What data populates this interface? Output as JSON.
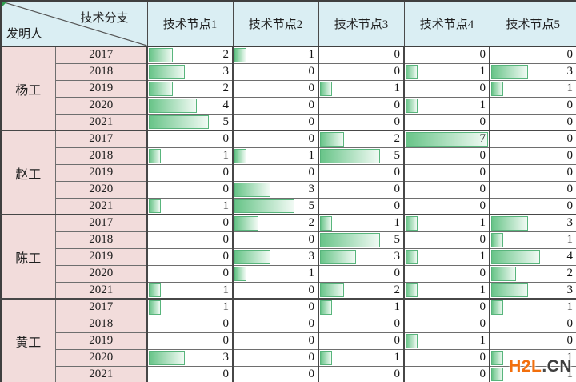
{
  "chart_data": {
    "type": "table",
    "title": "",
    "corner": {
      "top_label": "技术分支",
      "bottom_label": "发明人"
    },
    "columns": [
      "技术节点1",
      "技术节点2",
      "技术节点3",
      "技术节点4",
      "技术节点5"
    ],
    "bar_max": 7,
    "bar_style": "green-gradient-databar",
    "groups": [
      {
        "inventor": "杨工",
        "rows": [
          {
            "year": "2017",
            "values": [
              2,
              1,
              0,
              0,
              0
            ]
          },
          {
            "year": "2018",
            "values": [
              3,
              0,
              0,
              1,
              3
            ]
          },
          {
            "year": "2019",
            "values": [
              2,
              0,
              1,
              0,
              1
            ]
          },
          {
            "year": "2020",
            "values": [
              4,
              0,
              0,
              1,
              0
            ]
          },
          {
            "year": "2021",
            "values": [
              5,
              0,
              0,
              0,
              0
            ]
          }
        ]
      },
      {
        "inventor": "赵工",
        "rows": [
          {
            "year": "2017",
            "values": [
              0,
              0,
              2,
              7,
              0
            ]
          },
          {
            "year": "2018",
            "values": [
              1,
              1,
              5,
              0,
              0
            ]
          },
          {
            "year": "2019",
            "values": [
              0,
              0,
              0,
              0,
              0
            ]
          },
          {
            "year": "2020",
            "values": [
              0,
              3,
              0,
              0,
              0
            ]
          },
          {
            "year": "2021",
            "values": [
              1,
              5,
              0,
              0,
              0
            ]
          }
        ]
      },
      {
        "inventor": "陈工",
        "rows": [
          {
            "year": "2017",
            "values": [
              0,
              2,
              1,
              1,
              3
            ]
          },
          {
            "year": "2018",
            "values": [
              0,
              0,
              5,
              0,
              1
            ]
          },
          {
            "year": "2019",
            "values": [
              0,
              3,
              3,
              1,
              4
            ]
          },
          {
            "year": "2020",
            "values": [
              0,
              1,
              0,
              0,
              2
            ]
          },
          {
            "year": "2021",
            "values": [
              1,
              0,
              2,
              1,
              3
            ]
          }
        ]
      },
      {
        "inventor": "黄工",
        "rows": [
          {
            "year": "2017",
            "values": [
              1,
              0,
              1,
              0,
              1
            ]
          },
          {
            "year": "2018",
            "values": [
              0,
              0,
              0,
              0,
              0
            ]
          },
          {
            "year": "2019",
            "values": [
              0,
              0,
              0,
              1,
              0
            ]
          },
          {
            "year": "2020",
            "values": [
              3,
              0,
              1,
              0,
              1
            ]
          },
          {
            "year": "2021",
            "values": [
              0,
              0,
              0,
              0,
              1
            ]
          }
        ]
      }
    ]
  },
  "watermark": {
    "brand": "H2L",
    "dot": ".",
    "tld": "CN"
  },
  "colors": {
    "header_bg": "#daeef3",
    "label_bg": "#f2dcdb",
    "bar_fill_start": "#68c488",
    "bar_fill_end": "#f1faf4",
    "bar_border": "#58b57c",
    "grid_dark": "#474747",
    "grid_light": "#6e6e6e",
    "flag_green": "#2f9e4f",
    "watermark_orange": "#f26f0d",
    "watermark_dark": "#3e3e3e"
  }
}
